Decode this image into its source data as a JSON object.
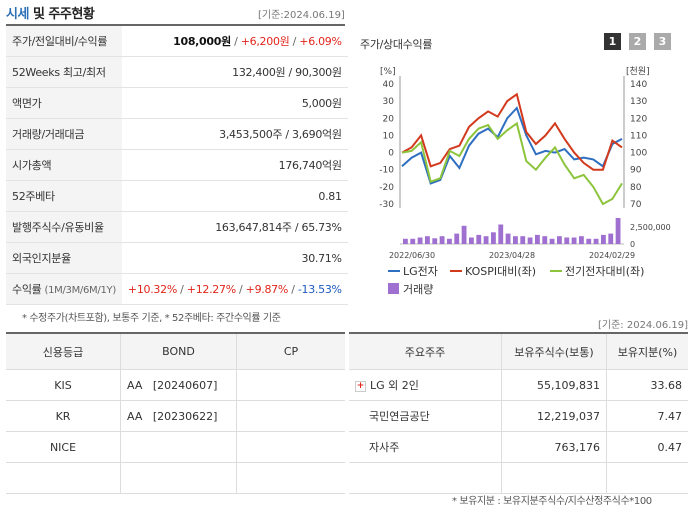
{
  "header": {
    "title_part1": "시세",
    "title_part2": " 및 주주현황",
    "date": "[기준:2024.06.19]"
  },
  "info_rows": [
    {
      "label": "주가/전일대비/수익률",
      "v1": "108,000원",
      "sep1": " / ",
      "v2": "+6,200원",
      "sep2": " / ",
      "v3": "+6.09%"
    },
    {
      "label": "52Weeks 최고/최저",
      "value": "132,400원 / 90,300원"
    },
    {
      "label": "액면가",
      "value": "5,000원"
    },
    {
      "label": "거래량/거래대금",
      "value": "3,453,500주 / 3,690억원"
    },
    {
      "label": "시가총액",
      "value": "176,740억원"
    },
    {
      "label": "52주베타",
      "value": "0.81"
    },
    {
      "label": "발행주식수/유동비율",
      "value": "163,647,814주 / 65.73%"
    },
    {
      "label": "외국인지분율",
      "value": "30.71%"
    },
    {
      "label": "수익률",
      "sub": "(1M/3M/6M/1Y)",
      "r1": "+10.32%",
      "r2": "+12.27%",
      "r3": "+9.87%",
      "r4": "-13.53%",
      "sep": " / "
    }
  ],
  "footnote1": "* 수정주가(차트포함), 보통주 기준, * 52주베타: 주간수익률 기준",
  "chart_panel": {
    "title": "주가/상대수익률",
    "period_buttons": [
      "1",
      "2",
      "3"
    ],
    "date2": "[기준: 2024.06.19]"
  },
  "chart_data": {
    "type": "line",
    "left_axis_unit": "[%]",
    "right_axis_unit": "[천원]",
    "left_ticks": [
      40,
      30,
      20,
      10,
      0,
      -10,
      -20,
      -30
    ],
    "right_ticks": [
      140,
      130,
      120,
      110,
      100,
      90,
      80,
      70
    ],
    "ylim_left": [
      -30,
      40
    ],
    "ylim_right": [
      70,
      140
    ],
    "volume_ticks": [
      "2,500,000",
      "0"
    ],
    "x_ticks": [
      "2022/06/30",
      "2023/04/28",
      "2024/02/29"
    ],
    "series": [
      {
        "name": "LG전자",
        "axis": "right",
        "color": "#2f6fc1",
        "values": [
          92,
          97,
          100,
          82,
          84,
          98,
          91,
          104,
          111,
          114,
          109,
          120,
          126,
          110,
          99,
          101,
          100,
          102,
          96,
          97,
          96,
          92,
          105,
          108
        ]
      },
      {
        "name": "KOSPI대비(좌)",
        "axis": "left",
        "color": "#d2391d",
        "values": [
          0,
          3,
          10,
          -8,
          -6,
          2,
          4,
          15,
          20,
          24,
          21,
          30,
          34,
          12,
          5,
          10,
          17,
          8,
          0,
          -6,
          -10,
          -10,
          7,
          3
        ]
      },
      {
        "name": "전기전자대비(좌)",
        "axis": "left",
        "color": "#8cc43c",
        "values": [
          0,
          1,
          6,
          -17,
          -15,
          1,
          -2,
          8,
          14,
          16,
          8,
          13,
          17,
          -5,
          -10,
          -3,
          3,
          -7,
          -15,
          -13,
          -20,
          -30,
          -27,
          -18
        ]
      }
    ],
    "volume": {
      "name": "거래량",
      "color": "#a070d0",
      "values": [
        0.2,
        0.2,
        0.25,
        0.3,
        0.22,
        0.3,
        0.2,
        0.4,
        0.7,
        0.25,
        0.35,
        0.3,
        0.45,
        0.75,
        0.4,
        0.3,
        0.3,
        0.25,
        0.35,
        0.3,
        0.2,
        0.3,
        0.25,
        0.25,
        0.3,
        0.2,
        0.2,
        0.35,
        0.4,
        1.0
      ]
    }
  },
  "credit_table": {
    "headers": [
      "신용등급",
      "BOND",
      "CP"
    ],
    "rows": [
      {
        "agency": "KIS",
        "bond": "AA   [20240607]",
        "cp": ""
      },
      {
        "agency": "KR",
        "bond": "AA   [20230622]",
        "cp": ""
      },
      {
        "agency": "NICE",
        "bond": "",
        "cp": ""
      },
      {
        "agency": "",
        "bond": "",
        "cp": ""
      }
    ]
  },
  "holders_table": {
    "headers": [
      "주요주주",
      "보유주식수(보통)",
      "보유지분(%)"
    ],
    "rows": [
      {
        "name": "LG 외 2인",
        "shares": "55,109,831",
        "pct": "33.68",
        "expand": "+"
      },
      {
        "name": "국민연금공단",
        "shares": "12,219,037",
        "pct": "7.47"
      },
      {
        "name": "자사주",
        "shares": "763,176",
        "pct": "0.47"
      },
      {
        "name": "",
        "shares": "",
        "pct": ""
      }
    ]
  },
  "footnote2": "* 보유지분 : 보유지분주식수/지수산정주식수*100"
}
